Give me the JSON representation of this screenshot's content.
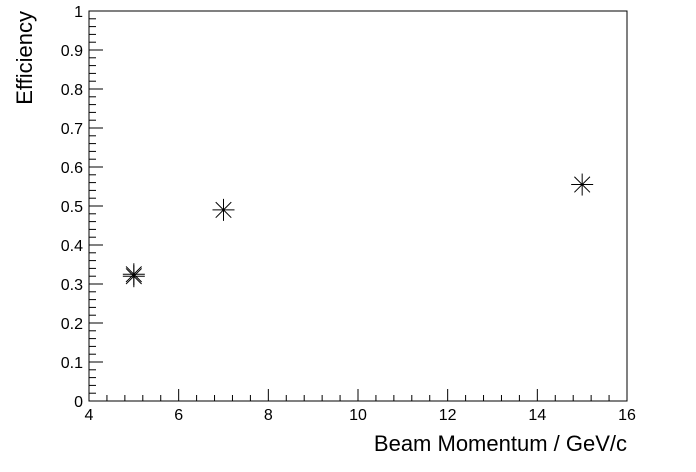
{
  "chart_data": {
    "type": "scatter",
    "title": "",
    "xlabel": "Beam Momentum / GeV/c",
    "ylabel": "Efficiency",
    "xlim": [
      4,
      16
    ],
    "ylim": [
      0,
      1
    ],
    "x_ticks": [
      4,
      6,
      8,
      10,
      12,
      14,
      16
    ],
    "y_ticks": [
      0,
      0.1,
      0.2,
      0.3,
      0.4,
      0.5,
      0.6,
      0.7,
      0.8,
      0.9,
      1
    ],
    "x_tick_labels": [
      "4",
      "6",
      "8",
      "10",
      "12",
      "14",
      "16"
    ],
    "y_tick_labels": [
      "0",
      "0.1",
      "0.2",
      "0.3",
      "0.4",
      "0.5",
      "0.6",
      "0.7",
      "0.8",
      "0.9",
      "1"
    ],
    "grid": false,
    "marker": "star",
    "marker_color": "#000000",
    "series": [
      {
        "points": [
          {
            "x": 5,
            "y": 0.325
          },
          {
            "x": 5,
            "y": 0.32
          },
          {
            "x": 7,
            "y": 0.49
          },
          {
            "x": 15,
            "y": 0.555
          }
        ]
      }
    ]
  }
}
